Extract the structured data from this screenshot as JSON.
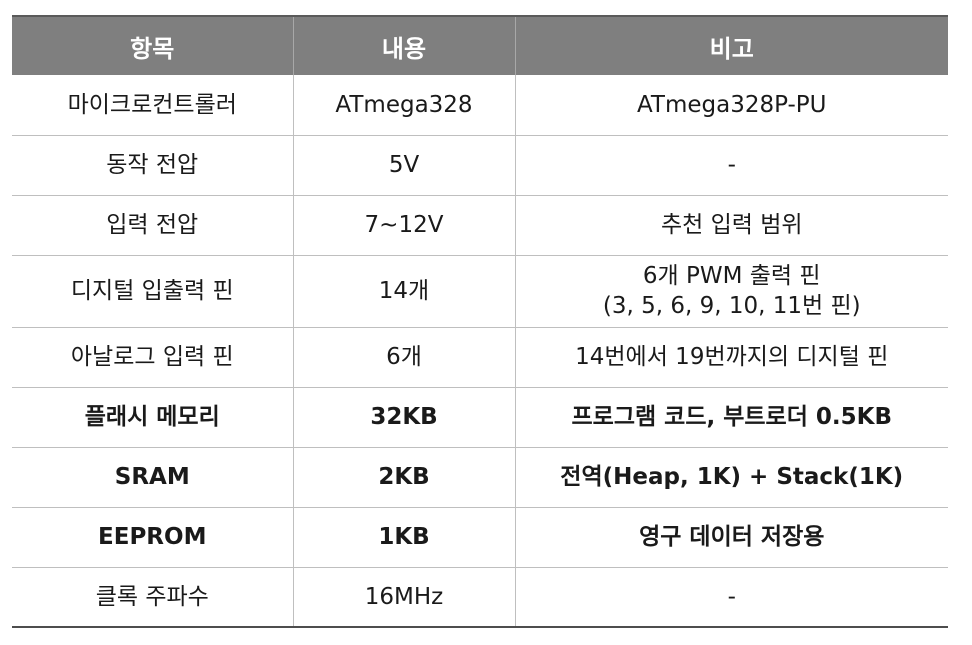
{
  "table": {
    "headers": [
      "항목",
      "내용",
      "비고"
    ],
    "rows": [
      {
        "item": "마이크로컨트롤러",
        "content": "ATmega328",
        "note": [
          "ATmega328P-PU"
        ],
        "bold": false
      },
      {
        "item": "동작 전압",
        "content": "5V",
        "note": [
          "-"
        ],
        "bold": false
      },
      {
        "item": "입력 전압",
        "content": "7~12V",
        "note": [
          "추천 입력 범위"
        ],
        "bold": false
      },
      {
        "item": "디지털 입출력 핀",
        "content": "14개",
        "note": [
          "6개 PWM 출력 핀",
          "(3, 5, 6, 9, 10, 11번 핀)"
        ],
        "bold": false
      },
      {
        "item": "아날로그 입력 핀",
        "content": "6개",
        "note": [
          "14번에서 19번까지의 디지털 핀"
        ],
        "bold": false
      },
      {
        "item": "플래시 메모리",
        "content": "32KB",
        "note": [
          "프로그램 코드, 부트로더 0.5KB"
        ],
        "bold": true
      },
      {
        "item": "SRAM",
        "content": "2KB",
        "note": [
          "전역(Heap, 1K) + Stack(1K)"
        ],
        "bold": true
      },
      {
        "item": "EEPROM",
        "content": "1KB",
        "note": [
          "영구 데이터 저장용"
        ],
        "bold": true
      },
      {
        "item": "클록 주파수",
        "content": "16MHz",
        "note": [
          "-"
        ],
        "bold": false
      }
    ]
  }
}
